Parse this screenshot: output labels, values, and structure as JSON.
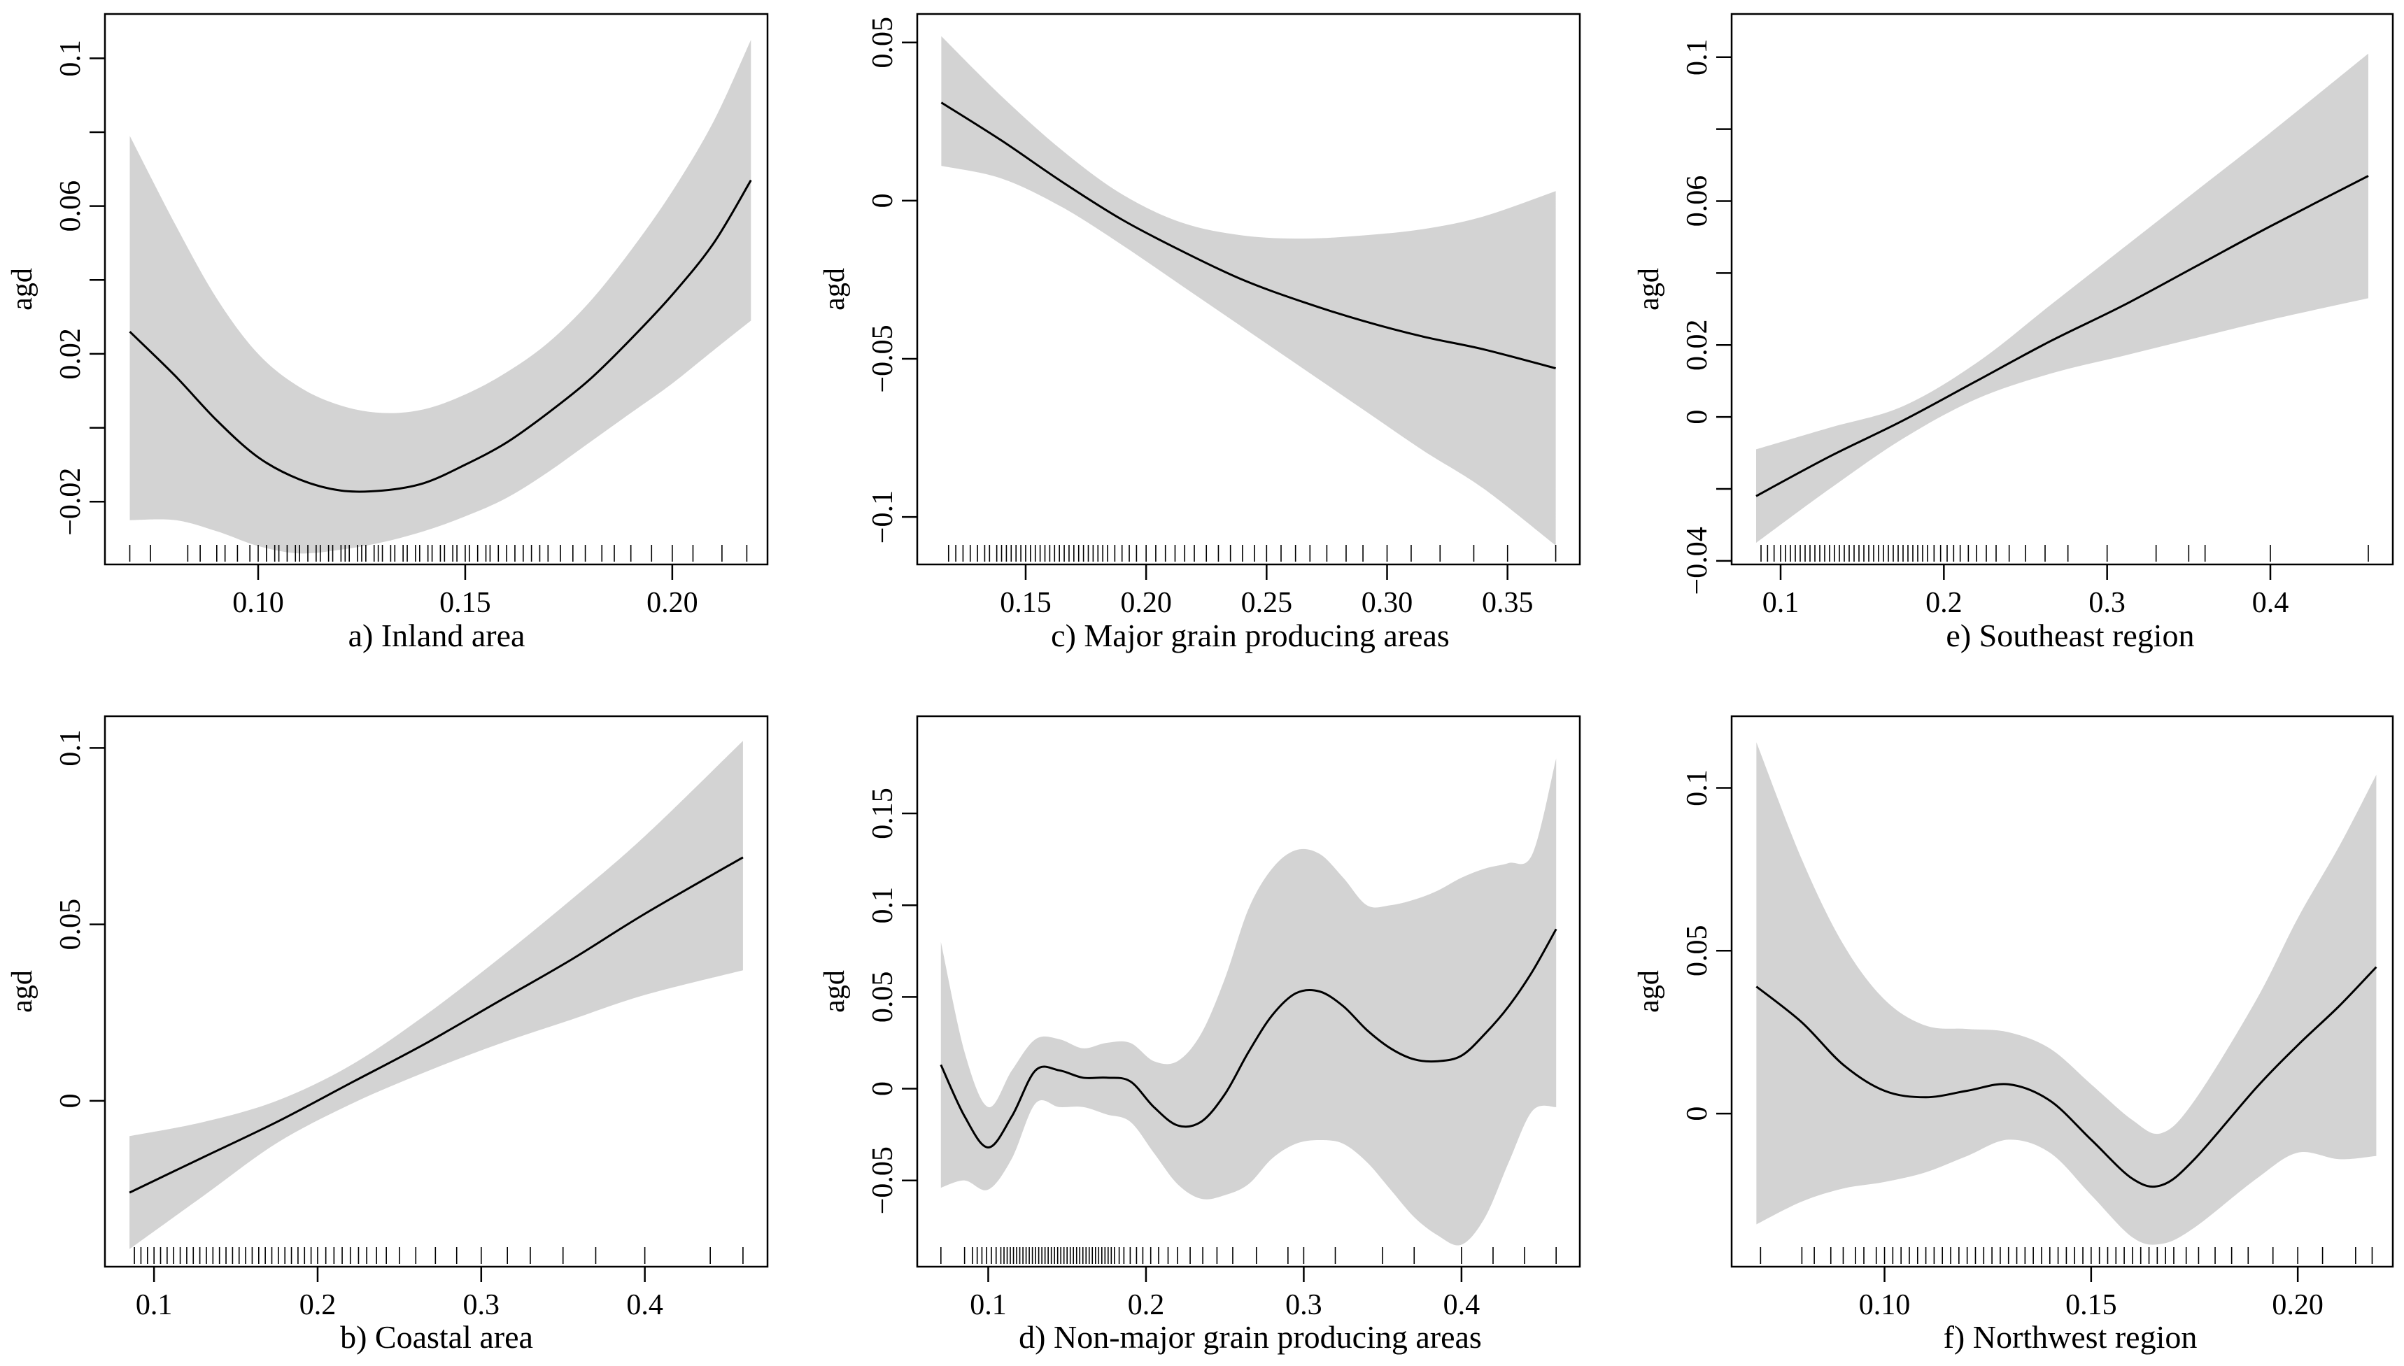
{
  "figure": {
    "panels": [
      {
        "id": "a",
        "caption": "a) Inland area",
        "ylabel": "agd"
      },
      {
        "id": "c",
        "caption": "c) Major grain producing areas",
        "ylabel": "agd"
      },
      {
        "id": "e",
        "caption": "e) Southeast region",
        "ylabel": "agd"
      },
      {
        "id": "b",
        "caption": "b) Coastal area",
        "ylabel": "agd"
      },
      {
        "id": "d",
        "caption": "d) Non-major grain producing areas",
        "ylabel": "agd"
      },
      {
        "id": "f",
        "caption": "f) Northwest region",
        "ylabel": "agd"
      }
    ]
  },
  "colors": {
    "band": "#d3d3d3",
    "line": "#000000",
    "axis": "#000000"
  },
  "chart_data": [
    {
      "type": "line",
      "panel": "a",
      "title": "a) Inland area",
      "xlabel": "",
      "ylabel": "agd",
      "xlim": [
        0.063,
        0.223
      ],
      "ylim": [
        -0.037,
        0.112
      ],
      "x_ticks": [
        0.1,
        0.15,
        0.2
      ],
      "x_tick_labels": [
        "0.10",
        "0.15",
        "0.20"
      ],
      "y_ticks": [
        -0.02,
        0,
        0.02,
        0.04,
        0.06,
        0.08,
        0.1
      ],
      "y_tick_labels": [
        "−0.02",
        "",
        "0.02",
        "",
        "0.06",
        "",
        "0.1"
      ],
      "x": [
        0.069,
        0.08,
        0.09,
        0.1,
        0.11,
        0.12,
        0.13,
        0.14,
        0.15,
        0.16,
        0.17,
        0.18,
        0.19,
        0.2,
        0.21,
        0.219
      ],
      "fit": [
        0.026,
        0.014,
        0.002,
        -0.008,
        -0.014,
        -0.017,
        -0.017,
        -0.015,
        -0.01,
        -0.004,
        0.004,
        0.013,
        0.024,
        0.036,
        0.05,
        0.067
      ],
      "upper": [
        0.079,
        0.055,
        0.035,
        0.02,
        0.011,
        0.006,
        0.004,
        0.005,
        0.009,
        0.015,
        0.023,
        0.034,
        0.048,
        0.064,
        0.083,
        0.105
      ],
      "lower": [
        -0.025,
        -0.025,
        -0.028,
        -0.032,
        -0.034,
        -0.033,
        -0.031,
        -0.028,
        -0.024,
        -0.019,
        -0.012,
        -0.004,
        0.004,
        0.012,
        0.021,
        0.029
      ],
      "rug": [
        0.069,
        0.074,
        0.083,
        0.086,
        0.09,
        0.092,
        0.095,
        0.098,
        0.1,
        0.102,
        0.104,
        0.105,
        0.107,
        0.109,
        0.11,
        0.112,
        0.114,
        0.115,
        0.117,
        0.118,
        0.12,
        0.121,
        0.122,
        0.124,
        0.125,
        0.126,
        0.128,
        0.129,
        0.13,
        0.132,
        0.133,
        0.135,
        0.136,
        0.138,
        0.139,
        0.141,
        0.142,
        0.144,
        0.145,
        0.147,
        0.148,
        0.15,
        0.151,
        0.153,
        0.155,
        0.156,
        0.158,
        0.16,
        0.162,
        0.164,
        0.166,
        0.168,
        0.17,
        0.173,
        0.176,
        0.179,
        0.183,
        0.186,
        0.19,
        0.195,
        0.2,
        0.205,
        0.212,
        0.218
      ]
    },
    {
      "type": "line",
      "panel": "c",
      "title": "c) Major grain producing areas",
      "xlabel": "",
      "ylabel": "agd",
      "xlim": [
        0.105,
        0.38
      ],
      "ylim": [
        -0.115,
        0.059
      ],
      "x_ticks": [
        0.15,
        0.2,
        0.25,
        0.3,
        0.35
      ],
      "x_tick_labels": [
        "0.15",
        "0.20",
        "0.25",
        "0.30",
        "0.35"
      ],
      "y_ticks": [
        -0.1,
        -0.05,
        0,
        0.05
      ],
      "y_tick_labels": [
        "−0.1",
        "−0.05",
        "0",
        "0.05"
      ],
      "x": [
        0.115,
        0.14,
        0.165,
        0.19,
        0.215,
        0.24,
        0.265,
        0.29,
        0.315,
        0.34,
        0.37
      ],
      "fit": [
        0.031,
        0.019,
        0.006,
        -0.006,
        -0.016,
        -0.025,
        -0.032,
        -0.038,
        -0.043,
        -0.047,
        -0.053
      ],
      "upper": [
        0.052,
        0.033,
        0.016,
        0.002,
        -0.007,
        -0.011,
        -0.012,
        -0.011,
        -0.009,
        -0.005,
        0.003
      ],
      "lower": [
        0.011,
        0.007,
        -0.002,
        -0.014,
        -0.027,
        -0.04,
        -0.053,
        -0.066,
        -0.079,
        -0.091,
        -0.109
      ],
      "rug": [
        0.118,
        0.121,
        0.124,
        0.127,
        0.13,
        0.133,
        0.135,
        0.138,
        0.14,
        0.142,
        0.144,
        0.146,
        0.148,
        0.15,
        0.152,
        0.154,
        0.156,
        0.158,
        0.16,
        0.162,
        0.164,
        0.166,
        0.168,
        0.17,
        0.172,
        0.174,
        0.176,
        0.178,
        0.18,
        0.182,
        0.184,
        0.187,
        0.19,
        0.193,
        0.196,
        0.2,
        0.204,
        0.208,
        0.212,
        0.216,
        0.22,
        0.225,
        0.23,
        0.235,
        0.24,
        0.245,
        0.25,
        0.256,
        0.262,
        0.268,
        0.275,
        0.283,
        0.29,
        0.3,
        0.31,
        0.322,
        0.336,
        0.35,
        0.37
      ]
    },
    {
      "type": "line",
      "panel": "e",
      "title": "e) Southeast region",
      "xlabel": "",
      "ylabel": "agd",
      "xlim": [
        0.07,
        0.475
      ],
      "ylim": [
        -0.041,
        0.112
      ],
      "x_ticks": [
        0.1,
        0.2,
        0.3,
        0.4
      ],
      "x_tick_labels": [
        "0.1",
        "0.2",
        "0.3",
        "0.4"
      ],
      "y_ticks": [
        -0.04,
        -0.02,
        0,
        0.02,
        0.04,
        0.06,
        0.08,
        0.1
      ],
      "y_tick_labels": [
        "−0.04",
        "",
        "0",
        "0.02",
        "",
        "0.06",
        "",
        "0.1"
      ],
      "x": [
        0.085,
        0.13,
        0.175,
        0.22,
        0.265,
        0.31,
        0.355,
        0.4,
        0.46
      ],
      "fit": [
        -0.022,
        -0.011,
        -0.001,
        0.01,
        0.021,
        0.031,
        0.042,
        0.053,
        0.067
      ],
      "upper": [
        -0.009,
        -0.003,
        0.003,
        0.015,
        0.031,
        0.047,
        0.063,
        0.079,
        0.101
      ],
      "lower": [
        -0.035,
        -0.02,
        -0.006,
        0.005,
        0.012,
        0.017,
        0.022,
        0.027,
        0.033
      ],
      "rug": [
        0.088,
        0.092,
        0.096,
        0.1,
        0.103,
        0.106,
        0.109,
        0.112,
        0.115,
        0.118,
        0.121,
        0.124,
        0.127,
        0.13,
        0.133,
        0.136,
        0.139,
        0.142,
        0.145,
        0.148,
        0.151,
        0.154,
        0.157,
        0.16,
        0.163,
        0.166,
        0.169,
        0.172,
        0.175,
        0.178,
        0.181,
        0.184,
        0.187,
        0.19,
        0.194,
        0.198,
        0.202,
        0.206,
        0.21,
        0.215,
        0.22,
        0.226,
        0.232,
        0.24,
        0.25,
        0.262,
        0.276,
        0.3,
        0.33,
        0.35,
        0.36,
        0.4,
        0.46
      ]
    },
    {
      "type": "line",
      "panel": "b",
      "title": "b) Coastal area",
      "xlabel": "",
      "ylabel": "agd",
      "xlim": [
        0.07,
        0.475
      ],
      "ylim": [
        -0.047,
        0.109
      ],
      "x_ticks": [
        0.1,
        0.2,
        0.3,
        0.4
      ],
      "x_tick_labels": [
        "0.1",
        "0.2",
        "0.3",
        "0.4"
      ],
      "y_ticks": [
        0,
        0.05,
        0.1
      ],
      "y_tick_labels": [
        "0",
        "0.05",
        "0.1"
      ],
      "x": [
        0.085,
        0.13,
        0.175,
        0.22,
        0.265,
        0.31,
        0.355,
        0.4,
        0.46
      ],
      "fit": [
        -0.026,
        -0.016,
        -0.006,
        0.005,
        0.016,
        0.028,
        0.04,
        0.053,
        0.069
      ],
      "upper": [
        -0.01,
        -0.006,
        0.0,
        0.01,
        0.024,
        0.04,
        0.057,
        0.075,
        0.102
      ],
      "lower": [
        -0.042,
        -0.027,
        -0.012,
        -0.001,
        0.008,
        0.016,
        0.023,
        0.03,
        0.037
      ],
      "rug": [
        0.088,
        0.092,
        0.096,
        0.1,
        0.104,
        0.108,
        0.112,
        0.116,
        0.12,
        0.124,
        0.128,
        0.132,
        0.136,
        0.14,
        0.144,
        0.148,
        0.152,
        0.156,
        0.16,
        0.164,
        0.168,
        0.172,
        0.176,
        0.18,
        0.184,
        0.188,
        0.192,
        0.196,
        0.2,
        0.205,
        0.21,
        0.215,
        0.22,
        0.225,
        0.23,
        0.236,
        0.242,
        0.25,
        0.26,
        0.272,
        0.285,
        0.3,
        0.316,
        0.33,
        0.35,
        0.37,
        0.4,
        0.44,
        0.46
      ]
    },
    {
      "type": "line",
      "panel": "d",
      "title": "d) Non-major grain producing areas",
      "xlabel": "",
      "ylabel": "agd",
      "xlim": [
        0.055,
        0.475
      ],
      "ylim": [
        -0.097,
        0.203
      ],
      "x_ticks": [
        0.1,
        0.2,
        0.3,
        0.4
      ],
      "x_tick_labels": [
        "0.1",
        "0.2",
        "0.3",
        "0.4"
      ],
      "y_ticks": [
        -0.05,
        0,
        0.05,
        0.1,
        0.15
      ],
      "y_tick_labels": [
        "−0.05",
        "0",
        "0.05",
        "0.1",
        "0.15"
      ],
      "x": [
        0.07,
        0.085,
        0.1,
        0.115,
        0.13,
        0.145,
        0.16,
        0.175,
        0.19,
        0.205,
        0.22,
        0.235,
        0.25,
        0.265,
        0.28,
        0.295,
        0.31,
        0.325,
        0.34,
        0.355,
        0.37,
        0.385,
        0.4,
        0.415,
        0.43,
        0.445,
        0.46
      ],
      "fit": [
        0.013,
        -0.015,
        -0.032,
        -0.015,
        0.01,
        0.01,
        0.006,
        0.006,
        0.004,
        -0.01,
        -0.02,
        -0.018,
        -0.003,
        0.02,
        0.04,
        0.052,
        0.053,
        0.045,
        0.032,
        0.022,
        0.016,
        0.015,
        0.018,
        0.03,
        0.045,
        0.064,
        0.087
      ],
      "upper": [
        0.08,
        0.02,
        -0.01,
        0.01,
        0.027,
        0.027,
        0.022,
        0.025,
        0.025,
        0.015,
        0.015,
        0.03,
        0.06,
        0.098,
        0.12,
        0.13,
        0.128,
        0.115,
        0.1,
        0.1,
        0.103,
        0.108,
        0.115,
        0.12,
        0.123,
        0.128,
        0.18
      ],
      "lower": [
        -0.054,
        -0.05,
        -0.055,
        -0.038,
        -0.008,
        -0.01,
        -0.01,
        -0.014,
        -0.018,
        -0.035,
        -0.052,
        -0.06,
        -0.058,
        -0.052,
        -0.038,
        -0.03,
        -0.028,
        -0.03,
        -0.04,
        -0.055,
        -0.07,
        -0.08,
        -0.085,
        -0.07,
        -0.04,
        -0.012,
        -0.01
      ],
      "rug": [
        0.07,
        0.085,
        0.09,
        0.093,
        0.096,
        0.099,
        0.102,
        0.105,
        0.108,
        0.11,
        0.112,
        0.114,
        0.116,
        0.118,
        0.12,
        0.122,
        0.124,
        0.126,
        0.128,
        0.13,
        0.132,
        0.134,
        0.136,
        0.138,
        0.14,
        0.142,
        0.144,
        0.146,
        0.148,
        0.15,
        0.152,
        0.154,
        0.156,
        0.158,
        0.16,
        0.162,
        0.164,
        0.166,
        0.168,
        0.17,
        0.172,
        0.174,
        0.176,
        0.178,
        0.18,
        0.183,
        0.186,
        0.19,
        0.194,
        0.198,
        0.203,
        0.208,
        0.214,
        0.22,
        0.228,
        0.236,
        0.245,
        0.255,
        0.27,
        0.29,
        0.3,
        0.32,
        0.35,
        0.37,
        0.4,
        0.42,
        0.44,
        0.46
      ]
    },
    {
      "type": "line",
      "panel": "f",
      "title": "f) Northwest region",
      "xlabel": "",
      "ylabel": "agd",
      "xlim": [
        0.063,
        0.223
      ],
      "ylim": [
        -0.047,
        0.122
      ],
      "x_ticks": [
        0.1,
        0.15,
        0.2
      ],
      "x_tick_labels": [
        "0.10",
        "0.15",
        "0.20"
      ],
      "y_ticks": [
        0,
        0.05,
        0.1
      ],
      "y_tick_labels": [
        "0",
        "0.05",
        "0.1"
      ],
      "x": [
        0.069,
        0.08,
        0.09,
        0.1,
        0.11,
        0.12,
        0.13,
        0.14,
        0.15,
        0.16,
        0.167,
        0.175,
        0.19,
        0.2,
        0.21,
        0.219
      ],
      "fit": [
        0.039,
        0.028,
        0.015,
        0.007,
        0.005,
        0.007,
        0.009,
        0.004,
        -0.008,
        -0.02,
        -0.022,
        -0.014,
        0.008,
        0.021,
        0.033,
        0.045
      ],
      "upper": [
        0.114,
        0.078,
        0.052,
        0.035,
        0.027,
        0.026,
        0.025,
        0.02,
        0.009,
        -0.002,
        -0.006,
        0.004,
        0.035,
        0.06,
        0.082,
        0.104
      ],
      "lower": [
        -0.034,
        -0.027,
        -0.023,
        -0.021,
        -0.018,
        -0.013,
        -0.008,
        -0.012,
        -0.025,
        -0.038,
        -0.04,
        -0.035,
        -0.02,
        -0.012,
        -0.014,
        -0.013
      ],
      "rug": [
        0.07,
        0.08,
        0.083,
        0.087,
        0.09,
        0.093,
        0.095,
        0.098,
        0.1,
        0.102,
        0.104,
        0.106,
        0.108,
        0.11,
        0.112,
        0.114,
        0.116,
        0.118,
        0.12,
        0.122,
        0.124,
        0.126,
        0.128,
        0.13,
        0.132,
        0.134,
        0.136,
        0.138,
        0.14,
        0.142,
        0.144,
        0.146,
        0.148,
        0.15,
        0.152,
        0.154,
        0.156,
        0.158,
        0.16,
        0.162,
        0.164,
        0.166,
        0.168,
        0.17,
        0.173,
        0.176,
        0.18,
        0.184,
        0.188,
        0.194,
        0.2,
        0.206,
        0.214,
        0.218
      ]
    }
  ]
}
